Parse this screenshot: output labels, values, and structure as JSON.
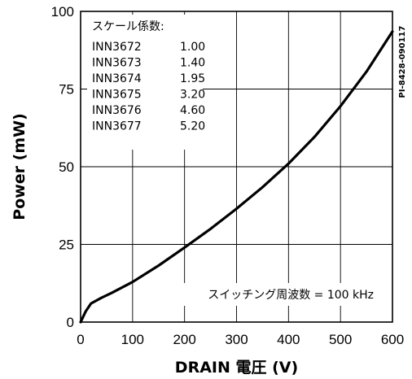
{
  "chart_data": {
    "type": "line",
    "document_id": "PI-8428-090117",
    "xlabel_prefix": "DRAIN",
    "xlabel_suffix": "電圧 (V)",
    "ylabel": "Power (mW)",
    "xlim": [
      0,
      600
    ],
    "ylim": [
      0,
      100
    ],
    "x_ticks": [
      "0",
      "100",
      "200",
      "300",
      "400",
      "500",
      "600"
    ],
    "y_ticks": [
      "0",
      "25",
      "50",
      "75",
      "100"
    ],
    "grid": true,
    "legend": {
      "title": "スケール係数:",
      "placement": "top-left",
      "entries": [
        {
          "part": "INN3672",
          "factor": "1.00"
        },
        {
          "part": "INN3673",
          "factor": "1.40"
        },
        {
          "part": "INN3674",
          "factor": "1.95"
        },
        {
          "part": "INN3675",
          "factor": "3.20"
        },
        {
          "part": "INN3676",
          "factor": "4.60"
        },
        {
          "part": "INN3677",
          "factor": "5.20"
        }
      ]
    },
    "annotation": "スイッチング周波数 = 100 kHz",
    "series": [
      {
        "color": "#000000",
        "x": [
          0,
          10,
          20,
          40,
          60,
          100,
          150,
          200,
          250,
          300,
          350,
          400,
          450,
          500,
          550,
          600
        ],
        "y": [
          0,
          3.5,
          6.0,
          7.8,
          9.4,
          12.9,
          18.2,
          24.0,
          30.0,
          36.5,
          43.4,
          51.0,
          59.6,
          69.5,
          80.6,
          93.5
        ]
      }
    ]
  }
}
